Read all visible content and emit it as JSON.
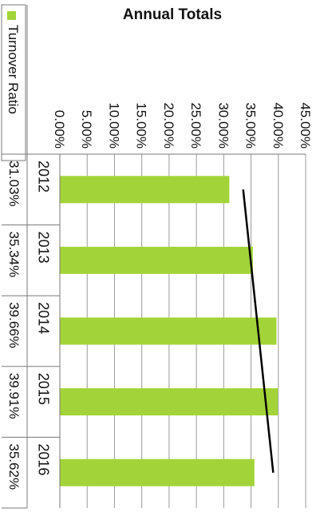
{
  "chart_data": {
    "type": "bar",
    "title": "Annual Totals",
    "categories": [
      "2012",
      "2013",
      "2014",
      "2015",
      "2016"
    ],
    "series": [
      {
        "name": "Turnover Ratio",
        "values": [
          31.03,
          35.34,
          39.66,
          39.91,
          35.62
        ],
        "labels": [
          "31.03%",
          "35.34%",
          "39.66%",
          "39.91%",
          "35.62%"
        ]
      }
    ],
    "ylim": [
      0,
      45
    ],
    "yticks": [
      "0.00%",
      "5.00%",
      "10.00%",
      "15.00%",
      "20.00%",
      "25.00%",
      "30.00%",
      "35.00%",
      "40.00%",
      "45.00%"
    ],
    "trendline": "linear",
    "data_table": true,
    "grid": true,
    "bar_color": "#a2d439",
    "trend_color": "#000000"
  }
}
